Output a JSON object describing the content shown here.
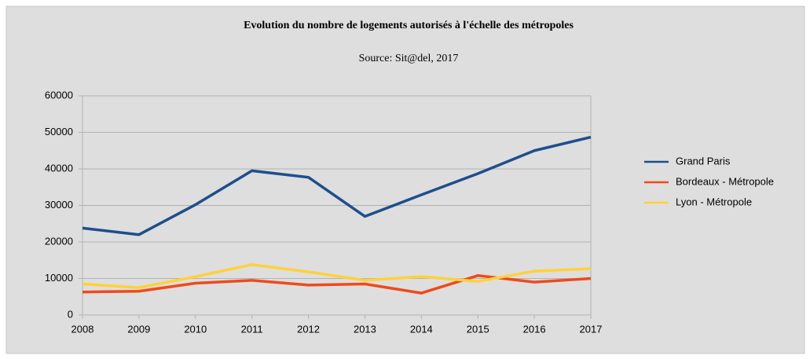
{
  "chart_data": {
    "type": "line",
    "title": "Evolution du nombre de logements autorisés à l'échelle des métropoles",
    "subtitle": "Source: Sit@del, 2017",
    "categories": [
      "2008",
      "2009",
      "2010",
      "2011",
      "2012",
      "2013",
      "2014",
      "2015",
      "2016",
      "2017"
    ],
    "series": [
      {
        "name": "Grand Paris",
        "color": "#1f4e8c",
        "values": [
          23800,
          22000,
          30200,
          39500,
          37700,
          27000,
          32900,
          38700,
          45000,
          48700
        ]
      },
      {
        "name": "Bordeaux - Métropole",
        "color": "#ee4a1c",
        "values": [
          6300,
          6500,
          8700,
          9500,
          8200,
          8500,
          6000,
          10800,
          9000,
          10000
        ]
      },
      {
        "name": "Lyon - Métropole",
        "color": "#ffd13a",
        "values": [
          8500,
          7500,
          10500,
          13800,
          11800,
          9500,
          10500,
          9200,
          12000,
          12700
        ]
      }
    ],
    "ylim": [
      0,
      60000
    ],
    "yticks": [
      0,
      10000,
      20000,
      30000,
      40000,
      50000,
      60000
    ],
    "grid": true,
    "legend": "right"
  }
}
